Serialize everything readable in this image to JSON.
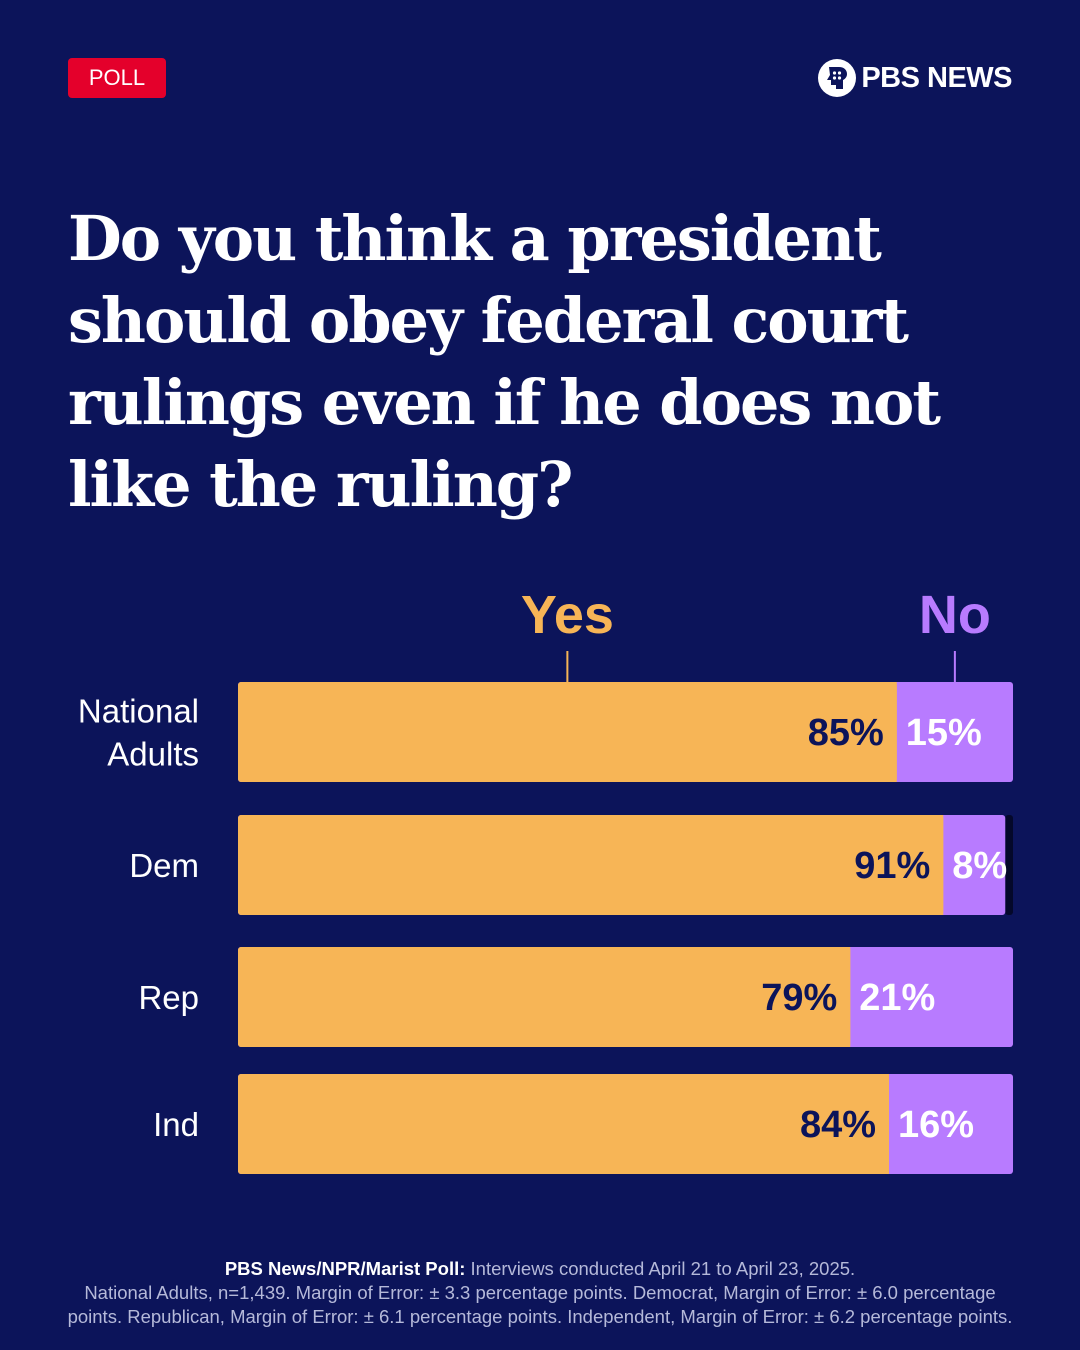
{
  "badge": "POLL",
  "brand": {
    "name": "PBS NEWS",
    "logo_icon": "pbs-head-logo-icon"
  },
  "question": "Do you think a president should obey federal court rulings even if he does not like the ruling?",
  "colors": {
    "background": "#0c145a",
    "yes": "#f7b556",
    "no": "#b87bff",
    "badge": "#e4002b",
    "dark_text": "#0c145a"
  },
  "chart_data": {
    "type": "bar",
    "orientation": "horizontal",
    "stacked": true,
    "categories": [
      "National Adults",
      "Dem",
      "Rep",
      "Ind"
    ],
    "category_lines": [
      [
        "National",
        "Adults"
      ],
      [
        "Dem"
      ],
      [
        "Rep"
      ],
      [
        "Ind"
      ]
    ],
    "series": [
      {
        "name": "Yes",
        "values": [
          85,
          91,
          79,
          84
        ],
        "labels": [
          "85%",
          "91%",
          "79%",
          "84%"
        ]
      },
      {
        "name": "No",
        "values": [
          15,
          8,
          21,
          16
        ],
        "labels": [
          "15%",
          "8%",
          "21%",
          "16%"
        ]
      }
    ],
    "unit": "%",
    "xlim": [
      0,
      100
    ],
    "legend": "top, above bars"
  },
  "footer": {
    "source": "PBS News/NPR/Marist Poll:",
    "line1": " Interviews conducted April 21 to April 23, 2025.",
    "line2": "National Adults, n=1,439. Margin of Error: ± 3.3 percentage points. Democrat,  Margin of Error: ± 6.0 percentage",
    "line3": "points. Republican, Margin of Error: ± 6.1 percentage points. Independent, Margin of Error: ± 6.2 percentage points."
  }
}
